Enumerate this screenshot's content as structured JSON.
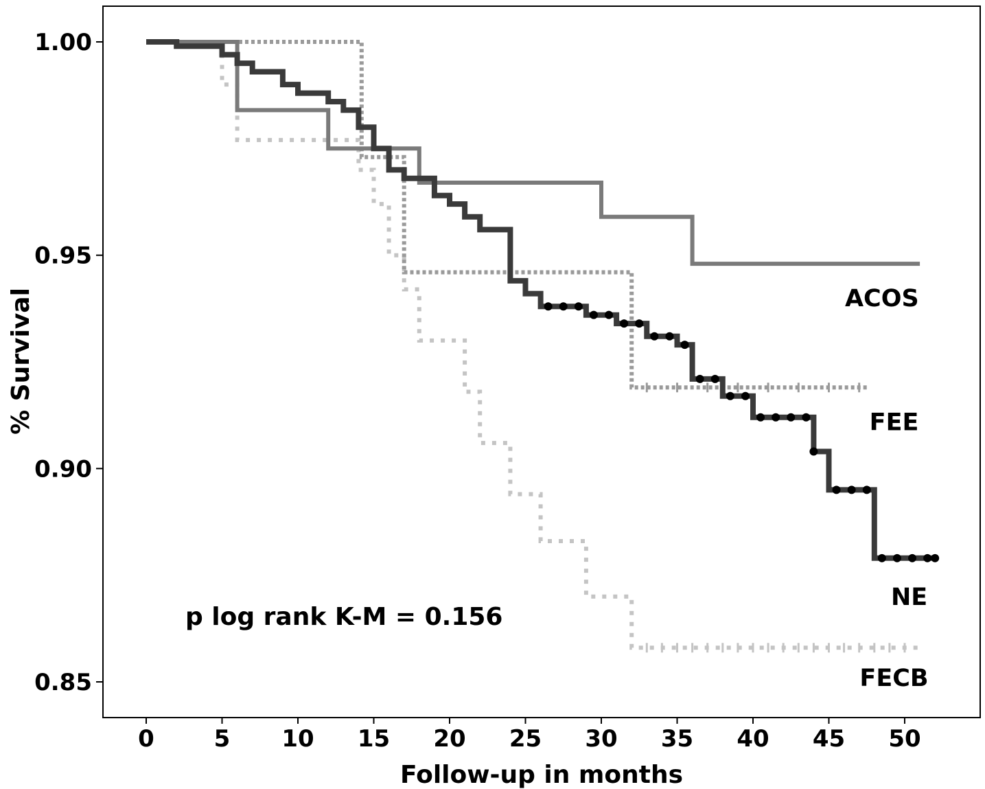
{
  "chart_data": {
    "type": "line",
    "subtype": "kaplan-meier step",
    "title": "",
    "xlabel": "Follow-up in months",
    "ylabel": "% Survival",
    "xlim": [
      -3,
      55
    ],
    "ylim": [
      0.842,
      1.008
    ],
    "x_ticks": [
      0,
      5,
      10,
      15,
      20,
      25,
      30,
      35,
      40,
      45,
      50
    ],
    "y_ticks": [
      0.85,
      0.9,
      0.95,
      1.0
    ],
    "y_tick_labels": [
      "0.85",
      "0.90",
      "0.95",
      "1.00"
    ],
    "annotation": "p log rank K-M = 0.156",
    "colors": {
      "ACOS": "#7a7a7a",
      "FEE": "#9a9a9a",
      "NE": "#3a3a3a",
      "FECB": "#c4c4c4"
    },
    "series": [
      {
        "name": "ACOS",
        "style": "solid",
        "points": [
          [
            0,
            1.0
          ],
          [
            6,
            1.0
          ],
          [
            6,
            0.984
          ],
          [
            12,
            0.984
          ],
          [
            12,
            0.975
          ],
          [
            18,
            0.975
          ],
          [
            18,
            0.967
          ],
          [
            30,
            0.967
          ],
          [
            30,
            0.959
          ],
          [
            36,
            0.959
          ],
          [
            36,
            0.948
          ],
          [
            51,
            0.948
          ]
        ]
      },
      {
        "name": "FEE",
        "style": "dotted",
        "points": [
          [
            0,
            1.0
          ],
          [
            14.2,
            1.0
          ],
          [
            14.2,
            0.973
          ],
          [
            17,
            0.973
          ],
          [
            17,
            0.946
          ],
          [
            32,
            0.946
          ],
          [
            32,
            0.919
          ],
          [
            47.5,
            0.919
          ]
        ],
        "censored": [
          33,
          35,
          37,
          39,
          41,
          43,
          45,
          47
        ]
      },
      {
        "name": "NE",
        "style": "solid",
        "points": [
          [
            0,
            1.0
          ],
          [
            2,
            1.0
          ],
          [
            2,
            0.999
          ],
          [
            5,
            0.999
          ],
          [
            5,
            0.997
          ],
          [
            6,
            0.997
          ],
          [
            6,
            0.995
          ],
          [
            7,
            0.995
          ],
          [
            7,
            0.993
          ],
          [
            9,
            0.993
          ],
          [
            9,
            0.99
          ],
          [
            10,
            0.99
          ],
          [
            10,
            0.988
          ],
          [
            12,
            0.988
          ],
          [
            12,
            0.986
          ],
          [
            13,
            0.986
          ],
          [
            13,
            0.984
          ],
          [
            14,
            0.984
          ],
          [
            14,
            0.98
          ],
          [
            15,
            0.98
          ],
          [
            15,
            0.975
          ],
          [
            16,
            0.975
          ],
          [
            16,
            0.97
          ],
          [
            17,
            0.97
          ],
          [
            17,
            0.968
          ],
          [
            19,
            0.968
          ],
          [
            19,
            0.964
          ],
          [
            20,
            0.964
          ],
          [
            20,
            0.962
          ],
          [
            21,
            0.962
          ],
          [
            21,
            0.959
          ],
          [
            22,
            0.959
          ],
          [
            22,
            0.956
          ],
          [
            24,
            0.956
          ],
          [
            24,
            0.944
          ],
          [
            25,
            0.944
          ],
          [
            25,
            0.941
          ],
          [
            26,
            0.941
          ],
          [
            26,
            0.938
          ],
          [
            29,
            0.938
          ],
          [
            29,
            0.936
          ],
          [
            31,
            0.936
          ],
          [
            31,
            0.934
          ],
          [
            33,
            0.934
          ],
          [
            33,
            0.931
          ],
          [
            35,
            0.931
          ],
          [
            35,
            0.929
          ],
          [
            36,
            0.929
          ],
          [
            36,
            0.921
          ],
          [
            38,
            0.921
          ],
          [
            38,
            0.917
          ],
          [
            40,
            0.917
          ],
          [
            40,
            0.912
          ],
          [
            44,
            0.912
          ],
          [
            44,
            0.904
          ],
          [
            45,
            0.904
          ],
          [
            45,
            0.895
          ],
          [
            48,
            0.895
          ],
          [
            48,
            0.879
          ],
          [
            52,
            0.879
          ]
        ],
        "censored": [
          26.5,
          27.5,
          28.5,
          29.5,
          30.5,
          31.5,
          32.5,
          33.5,
          34.5,
          35.5,
          36.5,
          37.5,
          38.5,
          39.5,
          40.5,
          41.5,
          42.5,
          43.5,
          44,
          45.5,
          46.5,
          47.5,
          48.5,
          49.5,
          50.5,
          51.5,
          52
        ]
      },
      {
        "name": "FECB",
        "style": "dotted",
        "points": [
          [
            0,
            1.0
          ],
          [
            5,
            1.0
          ],
          [
            5,
            0.99
          ],
          [
            6,
            0.99
          ],
          [
            6,
            0.977
          ],
          [
            14,
            0.977
          ],
          [
            14,
            0.97
          ],
          [
            15,
            0.97
          ],
          [
            15,
            0.962
          ],
          [
            16,
            0.962
          ],
          [
            16,
            0.95
          ],
          [
            17,
            0.95
          ],
          [
            17,
            0.942
          ],
          [
            18,
            0.942
          ],
          [
            18,
            0.93
          ],
          [
            21,
            0.93
          ],
          [
            21,
            0.918
          ],
          [
            22,
            0.918
          ],
          [
            22,
            0.906
          ],
          [
            24,
            0.906
          ],
          [
            24,
            0.894
          ],
          [
            26,
            0.894
          ],
          [
            26,
            0.883
          ],
          [
            29,
            0.883
          ],
          [
            29,
            0.87
          ],
          [
            32,
            0.87
          ],
          [
            32,
            0.858
          ],
          [
            51,
            0.858
          ]
        ],
        "censored": [
          33,
          34,
          35,
          36,
          37,
          38,
          39,
          40,
          41,
          42,
          43,
          44,
          45,
          46,
          47,
          48,
          49,
          50
        ]
      }
    ],
    "series_labels": [
      {
        "name": "ACOS",
        "x": 48.5,
        "y": 0.938
      },
      {
        "name": "FEE",
        "x": 49.3,
        "y": 0.909
      },
      {
        "name": "NE",
        "x": 50.3,
        "y": 0.868
      },
      {
        "name": "FECB",
        "x": 49.3,
        "y": 0.849
      }
    ]
  }
}
